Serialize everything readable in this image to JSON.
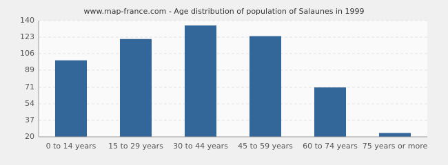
{
  "chart_data": {
    "type": "bar",
    "title": "www.map-france.com - Age distribution of population of Salaunes in 1999",
    "categories": [
      "0 to 14 years",
      "15 to 29 years",
      "30 to 44 years",
      "45 to 59 years",
      "60 to 74 years",
      "75 years or more"
    ],
    "values": [
      99,
      121,
      135,
      124,
      71,
      24
    ],
    "color": "#336699",
    "ylim": [
      20,
      140
    ],
    "yticks": [
      20,
      37,
      54,
      71,
      89,
      106,
      123,
      140
    ],
    "grid": true
  }
}
